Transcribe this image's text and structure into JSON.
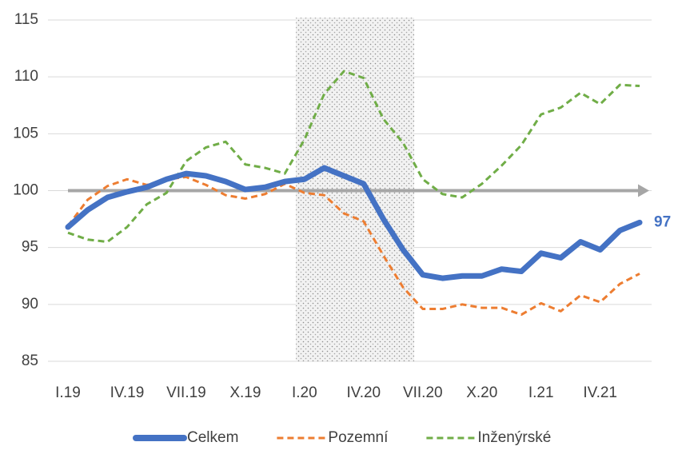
{
  "chart_data": {
    "type": "line",
    "categories": [
      "I.19",
      null,
      null,
      "IV.19",
      null,
      null,
      "VII.19",
      null,
      null,
      "X.19",
      null,
      null,
      "I.20",
      null,
      null,
      "IV.20",
      null,
      null,
      "VII.20",
      null,
      null,
      "X.20",
      null,
      null,
      "I.21",
      null,
      null,
      "IV.21",
      null,
      null
    ],
    "series": [
      {
        "name": "Celkem",
        "color": "#4472c4",
        "values": [
          96.8,
          98.3,
          99.4,
          99.9,
          100.3,
          101,
          101.5,
          101.3,
          100.8,
          100.1,
          100.3,
          100.8,
          101,
          102,
          101.3,
          100.6,
          97.5,
          94.8,
          92.6,
          92.3,
          92.5,
          92.5,
          93.1,
          92.9,
          94.5,
          94.1,
          95.5,
          94.8,
          96.5,
          97.2
        ],
        "value_labels": [
          null,
          null,
          null,
          null,
          null,
          null,
          null,
          null,
          null,
          null,
          null,
          null,
          null,
          null,
          null,
          null,
          null,
          null,
          null,
          null,
          null,
          null,
          null,
          null,
          null,
          null,
          null,
          null,
          null,
          "97"
        ]
      },
      {
        "name": "Pozemní",
        "color": "#ed7d31",
        "values": [
          96.9,
          99.2,
          100.4,
          101,
          100.5,
          101,
          101.2,
          100.5,
          99.6,
          99.3,
          99.7,
          100.6,
          99.8,
          99.6,
          98,
          97.3,
          94.3,
          91.5,
          89.6,
          89.6,
          90,
          89.7,
          89.7,
          89.1,
          90.1,
          89.4,
          90.8,
          90.2,
          91.8,
          92.7
        ]
      },
      {
        "name": "Inženýrské",
        "color": "#70ad47",
        "values": [
          96.3,
          95.7,
          95.5,
          96.8,
          98.8,
          99.8,
          102.6,
          103.8,
          104.3,
          102.3,
          102,
          101.5,
          104.5,
          108.5,
          110.5,
          109.9,
          106.3,
          104.2,
          101,
          99.7,
          99.4,
          100.6,
          102.2,
          104,
          106.7,
          107.3,
          108.6,
          107.6,
          109.3,
          109.2
        ]
      }
    ],
    "reference_line": 100,
    "ylim": [
      85,
      115
    ],
    "yticks": [
      85,
      90,
      95,
      100,
      105,
      110,
      115
    ],
    "grid": true,
    "legend": "bottom"
  }
}
